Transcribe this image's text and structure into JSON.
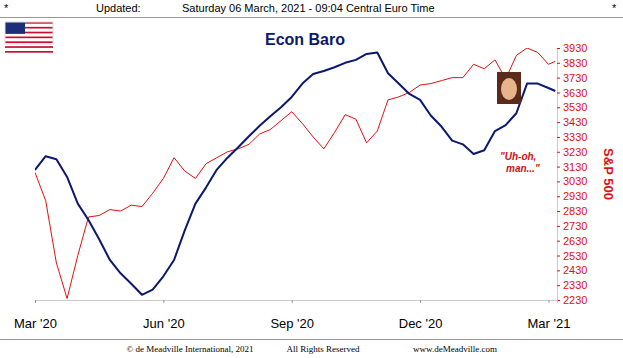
{
  "header": {
    "left_mark": "*",
    "updated_label": "Updated:",
    "timestamp": "Saturday 06 March, 2021 - 09:04 Central Euro Time",
    "right_mark": "*"
  },
  "footer": [
    "© de Meadville International, 2021",
    "All Rights Reserved",
    "www.deMeadville.com"
  ],
  "chart_data": {
    "type": "line",
    "title": "Econ Baro",
    "y_label": "S&P 500",
    "annotation_lines": [
      "\"Uh-oh,",
      "man...\""
    ],
    "x": [
      0,
      0.25,
      0.5,
      0.75,
      1,
      1.25,
      1.5,
      1.75,
      2,
      2.25,
      2.5,
      2.75,
      3,
      3.25,
      3.5,
      3.75,
      4,
      4.25,
      4.5,
      4.75,
      5,
      5.25,
      5.5,
      5.75,
      6,
      6.25,
      6.5,
      6.75,
      7,
      7.25,
      7.5,
      7.75,
      8,
      8.25,
      8.5,
      8.75,
      9,
      9.25,
      9.5,
      9.75,
      10,
      10.25,
      10.5,
      10.75,
      11,
      11.25,
      11.5,
      11.75,
      12,
      12.16
    ],
    "series": [
      {
        "color": "#0b1870",
        "values": [
          3107,
          3200,
          3180,
          3060,
          2880,
          2770,
          2640,
          2500,
          2410,
          2340,
          2265,
          2300,
          2390,
          2500,
          2700,
          2880,
          2990,
          3110,
          3190,
          3260,
          3335,
          3405,
          3470,
          3530,
          3600,
          3690,
          3755,
          3775,
          3800,
          3830,
          3850,
          3890,
          3900,
          3760,
          3690,
          3620,
          3580,
          3475,
          3400,
          3305,
          3280,
          3215,
          3240,
          3370,
          3410,
          3490,
          3690,
          3690,
          3660,
          3640
        ]
      },
      {
        "color": "#e01010",
        "values": [
          3090,
          2900,
          2480,
          2240,
          2530,
          2790,
          2800,
          2840,
          2830,
          2870,
          2860,
          2950,
          3050,
          3190,
          3100,
          3050,
          3150,
          3190,
          3230,
          3250,
          3280,
          3350,
          3380,
          3440,
          3500,
          3420,
          3330,
          3250,
          3360,
          3480,
          3450,
          3290,
          3370,
          3580,
          3600,
          3630,
          3680,
          3690,
          3710,
          3730,
          3730,
          3820,
          3790,
          3850,
          3720,
          3880,
          3930,
          3900,
          3820,
          3840
        ]
      }
    ],
    "xlim": [
      0,
      12.2
    ],
    "ylim": [
      2230,
      3930
    ],
    "xticks": [
      {
        "value": 0,
        "label": "Mar '20"
      },
      {
        "value": 3,
        "label": "Jun '20"
      },
      {
        "value": 6,
        "label": "Sep '20"
      },
      {
        "value": 9,
        "label": "Dec '20"
      },
      {
        "value": 12,
        "label": "Mar '21"
      }
    ],
    "yticks": [
      2230,
      2330,
      2430,
      2530,
      2630,
      2730,
      2830,
      2930,
      3030,
      3130,
      3230,
      3330,
      3430,
      3530,
      3630,
      3730,
      3830,
      3930
    ],
    "grid": false
  }
}
